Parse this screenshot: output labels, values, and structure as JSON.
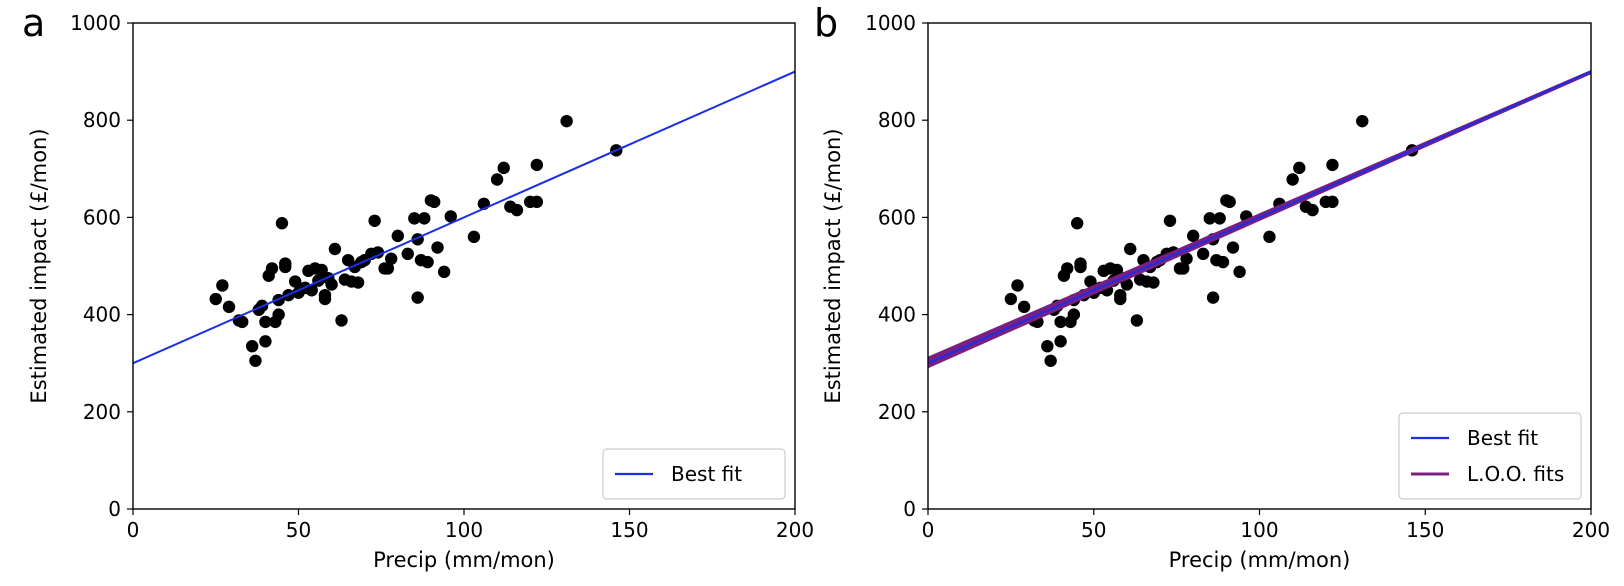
{
  "chart_data": [
    {
      "type": "scatter",
      "panel_label": "a",
      "xlabel": "Precip (mm/mon)",
      "ylabel": "Estimated impact (£/mon)",
      "xlim": [
        0,
        200
      ],
      "ylim": [
        0,
        1000
      ],
      "xticks": [
        "0",
        "50",
        "100",
        "150",
        "200"
      ],
      "yticks": [
        "0",
        "200",
        "400",
        "600",
        "800",
        "1000"
      ],
      "grid": false,
      "legend_position": "lower-right",
      "point_color": "#000000",
      "points": [
        [
          25,
          432
        ],
        [
          27,
          460
        ],
        [
          29,
          416
        ],
        [
          32,
          388
        ],
        [
          33,
          385
        ],
        [
          36,
          335
        ],
        [
          37,
          305
        ],
        [
          38,
          410
        ],
        [
          39,
          418
        ],
        [
          40,
          345
        ],
        [
          40,
          385
        ],
        [
          41,
          480
        ],
        [
          42,
          495
        ],
        [
          43,
          385
        ],
        [
          44,
          400
        ],
        [
          44,
          430
        ],
        [
          45,
          588
        ],
        [
          46,
          498
        ],
        [
          46,
          505
        ],
        [
          47,
          440
        ],
        [
          49,
          468
        ],
        [
          50,
          445
        ],
        [
          52,
          455
        ],
        [
          53,
          490
        ],
        [
          54,
          450
        ],
        [
          55,
          495
        ],
        [
          56,
          470
        ],
        [
          57,
          492
        ],
        [
          58,
          440
        ],
        [
          58,
          432
        ],
        [
          59,
          475
        ],
        [
          60,
          462
        ],
        [
          61,
          535
        ],
        [
          63,
          388
        ],
        [
          64,
          472
        ],
        [
          65,
          512
        ],
        [
          66,
          468
        ],
        [
          67,
          498
        ],
        [
          68,
          466
        ],
        [
          69,
          508
        ],
        [
          70,
          512
        ],
        [
          72,
          525
        ],
        [
          73,
          593
        ],
        [
          74,
          528
        ],
        [
          76,
          495
        ],
        [
          77,
          495
        ],
        [
          78,
          515
        ],
        [
          80,
          562
        ],
        [
          83,
          525
        ],
        [
          85,
          598
        ],
        [
          86,
          435
        ],
        [
          86,
          555
        ],
        [
          87,
          512
        ],
        [
          88,
          598
        ],
        [
          89,
          508
        ],
        [
          90,
          635
        ],
        [
          91,
          632
        ],
        [
          92,
          538
        ],
        [
          94,
          488
        ],
        [
          96,
          602
        ],
        [
          103,
          560
        ],
        [
          106,
          628
        ],
        [
          110,
          678
        ],
        [
          112,
          702
        ],
        [
          114,
          622
        ],
        [
          116,
          615
        ],
        [
          120,
          632
        ],
        [
          122,
          708
        ],
        [
          122,
          632
        ],
        [
          131,
          798
        ],
        [
          146,
          738
        ]
      ],
      "series": [
        {
          "name": "Best fit",
          "color": "#1a2ee6",
          "lines": [
            [
              300,
              3.0
            ]
          ]
        }
      ]
    },
    {
      "type": "scatter",
      "panel_label": "b",
      "xlabel": "Precip (mm/mon)",
      "ylabel": "Estimated impact (£/mon)",
      "xlim": [
        0,
        200
      ],
      "ylim": [
        0,
        1000
      ],
      "xticks": [
        "0",
        "50",
        "100",
        "150",
        "200"
      ],
      "yticks": [
        "0",
        "200",
        "400",
        "600",
        "800",
        "1000"
      ],
      "grid": false,
      "legend_position": "lower-right",
      "point_color": "#000000",
      "points": [
        [
          25,
          432
        ],
        [
          27,
          460
        ],
        [
          29,
          416
        ],
        [
          32,
          388
        ],
        [
          33,
          385
        ],
        [
          36,
          335
        ],
        [
          37,
          305
        ],
        [
          38,
          410
        ],
        [
          39,
          418
        ],
        [
          40,
          345
        ],
        [
          40,
          385
        ],
        [
          41,
          480
        ],
        [
          42,
          495
        ],
        [
          43,
          385
        ],
        [
          44,
          400
        ],
        [
          44,
          430
        ],
        [
          45,
          588
        ],
        [
          46,
          498
        ],
        [
          46,
          505
        ],
        [
          47,
          440
        ],
        [
          49,
          468
        ],
        [
          50,
          445
        ],
        [
          52,
          455
        ],
        [
          53,
          490
        ],
        [
          54,
          450
        ],
        [
          55,
          495
        ],
        [
          56,
          470
        ],
        [
          57,
          492
        ],
        [
          58,
          440
        ],
        [
          58,
          432
        ],
        [
          59,
          475
        ],
        [
          60,
          462
        ],
        [
          61,
          535
        ],
        [
          63,
          388
        ],
        [
          64,
          472
        ],
        [
          65,
          512
        ],
        [
          66,
          468
        ],
        [
          67,
          498
        ],
        [
          68,
          466
        ],
        [
          69,
          508
        ],
        [
          70,
          512
        ],
        [
          72,
          525
        ],
        [
          73,
          593
        ],
        [
          74,
          528
        ],
        [
          76,
          495
        ],
        [
          77,
          495
        ],
        [
          78,
          515
        ],
        [
          80,
          562
        ],
        [
          83,
          525
        ],
        [
          85,
          598
        ],
        [
          86,
          435
        ],
        [
          86,
          555
        ],
        [
          87,
          512
        ],
        [
          88,
          598
        ],
        [
          89,
          508
        ],
        [
          90,
          635
        ],
        [
          91,
          632
        ],
        [
          92,
          538
        ],
        [
          94,
          488
        ],
        [
          96,
          602
        ],
        [
          103,
          560
        ],
        [
          106,
          628
        ],
        [
          110,
          678
        ],
        [
          112,
          702
        ],
        [
          114,
          622
        ],
        [
          116,
          615
        ],
        [
          120,
          632
        ],
        [
          122,
          708
        ],
        [
          122,
          632
        ],
        [
          131,
          798
        ],
        [
          146,
          738
        ]
      ],
      "series": [
        {
          "name": "L.O.O. fits",
          "color": "#7a1f82",
          "lines": [
            [
              292,
              3.03
            ],
            [
              296,
              3.02
            ],
            [
              300,
              3.0
            ],
            [
              304,
              2.98
            ],
            [
              308,
              2.96
            ],
            [
              311,
              2.95
            ],
            [
              298,
              3.01
            ],
            [
              302,
              2.99
            ],
            [
              306,
              2.97
            ],
            [
              294,
              3.02
            ],
            [
              310,
              2.94
            ],
            [
              297,
              3.0
            ]
          ]
        },
        {
          "name": "Best fit",
          "color": "#1a2ee6",
          "lines": [
            [
              300,
              3.0
            ]
          ]
        }
      ]
    }
  ]
}
